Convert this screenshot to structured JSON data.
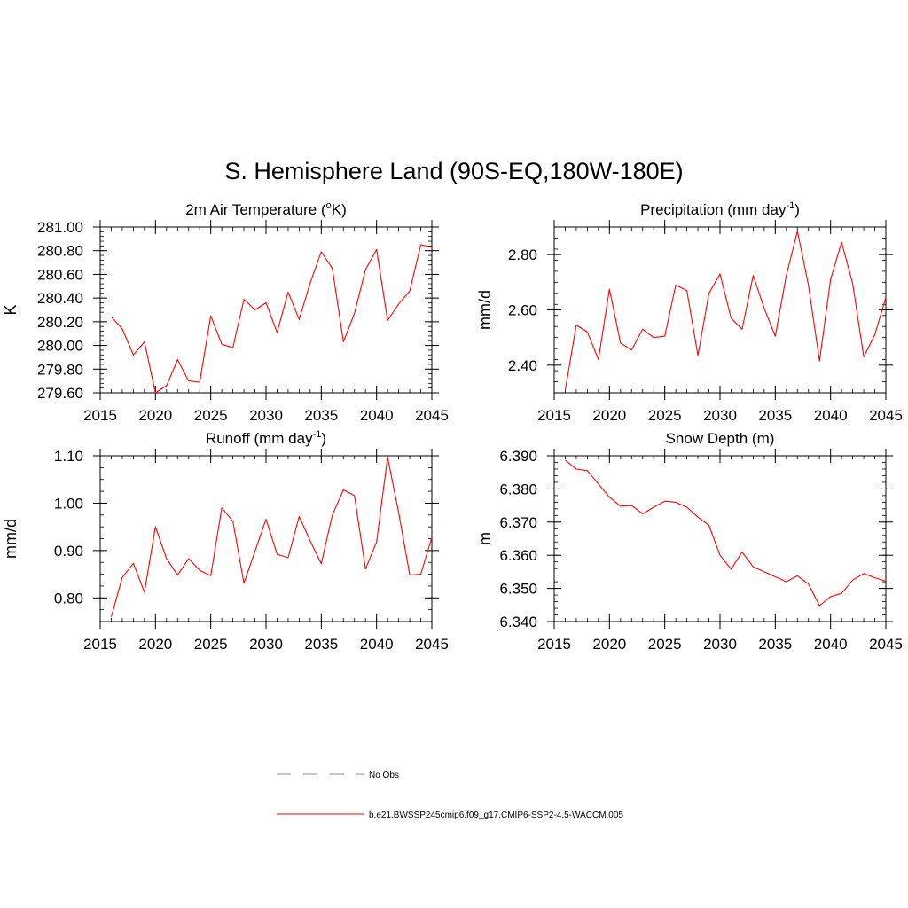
{
  "figure": {
    "title": "S. Hemisphere Land (90S-EQ,180W-180E)",
    "series_color": "#ff0000",
    "obs_color": "#9999dd"
  },
  "legend": {
    "obs_label": "No Obs",
    "model_label": "b.e21.BWSSP245cmip6.f09_g17.CMIP6-SSP2-4.5-WACCM.005"
  },
  "chart_data": [
    {
      "type": "line",
      "title": "2m Air Temperature (",
      "title_sup": "o",
      "title_suffix": "K)",
      "ylabel": "K",
      "xlim": [
        2015,
        2045
      ],
      "ylim": [
        279.6,
        281.0
      ],
      "xticks": [
        2015,
        2020,
        2025,
        2030,
        2035,
        2040,
        2045
      ],
      "xtick_labels": [
        "2015",
        "2020",
        "2025",
        "2030",
        "2035",
        "2040",
        "2045"
      ],
      "yticks": [
        279.6,
        279.8,
        280.0,
        280.2,
        280.4,
        280.6,
        280.8,
        281.0
      ],
      "ytick_labels": [
        "279.60",
        "279.80",
        "280.00",
        "280.20",
        "280.40",
        "280.60",
        "280.80",
        "281.00"
      ],
      "yminor_step": 0.04,
      "x": [
        2016,
        2017,
        2018,
        2019,
        2020,
        2021,
        2022,
        2023,
        2024,
        2025,
        2026,
        2027,
        2028,
        2029,
        2030,
        2031,
        2032,
        2033,
        2034,
        2035,
        2036,
        2037,
        2038,
        2039,
        2040,
        2041,
        2042,
        2043,
        2044,
        2045
      ],
      "values": [
        280.24,
        280.14,
        279.92,
        280.03,
        279.6,
        279.66,
        279.88,
        279.7,
        279.69,
        280.25,
        280.01,
        279.98,
        280.39,
        280.3,
        280.36,
        280.11,
        280.45,
        280.22,
        280.53,
        280.79,
        280.65,
        280.03,
        280.27,
        280.64,
        280.81,
        280.21,
        280.35,
        280.46,
        280.85,
        280.83
      ]
    },
    {
      "type": "line",
      "title": "Precipitation (mm day",
      "title_sup": "-1",
      "title_suffix": ")",
      "ylabel": "mm/d",
      "xlim": [
        2015,
        2045
      ],
      "ylim": [
        2.3,
        2.9
      ],
      "xticks": [
        2015,
        2020,
        2025,
        2030,
        2035,
        2040,
        2045
      ],
      "xtick_labels": [
        "2015",
        "2020",
        "2025",
        "2030",
        "2035",
        "2040",
        "2045"
      ],
      "yticks": [
        2.4,
        2.6,
        2.8
      ],
      "ytick_labels": [
        "2.40",
        "2.60",
        "2.80"
      ],
      "yminor_step": 0.04,
      "x": [
        2016,
        2017,
        2018,
        2019,
        2020,
        2021,
        2022,
        2023,
        2024,
        2025,
        2026,
        2027,
        2028,
        2029,
        2030,
        2031,
        2032,
        2033,
        2034,
        2035,
        2036,
        2037,
        2038,
        2039,
        2040,
        2041,
        2042,
        2043,
        2044,
        2045
      ],
      "values": [
        2.31,
        2.545,
        2.52,
        2.42,
        2.675,
        2.48,
        2.455,
        2.53,
        2.5,
        2.505,
        2.69,
        2.67,
        2.435,
        2.66,
        2.73,
        2.57,
        2.53,
        2.725,
        2.605,
        2.505,
        2.725,
        2.885,
        2.69,
        2.415,
        2.71,
        2.845,
        2.695,
        2.43,
        2.51,
        2.645
      ]
    },
    {
      "type": "line",
      "title": "Runoff (mm day",
      "title_sup": "-1",
      "title_suffix": ")",
      "ylabel": "mm/d",
      "xlim": [
        2015,
        2045
      ],
      "ylim": [
        0.75,
        1.1
      ],
      "xticks": [
        2015,
        2020,
        2025,
        2030,
        2035,
        2040,
        2045
      ],
      "xtick_labels": [
        "2015",
        "2020",
        "2025",
        "2030",
        "2035",
        "2040",
        "2045"
      ],
      "yticks": [
        0.8,
        0.9,
        1.0,
        1.1
      ],
      "ytick_labels": [
        "0.80",
        "0.90",
        "1.00",
        "1.10"
      ],
      "yminor_step": 0.025,
      "x": [
        2016,
        2017,
        2018,
        2019,
        2020,
        2021,
        2022,
        2023,
        2024,
        2025,
        2026,
        2027,
        2028,
        2029,
        2030,
        2031,
        2032,
        2033,
        2034,
        2035,
        2036,
        2037,
        2038,
        2039,
        2040,
        2041,
        2042,
        2043,
        2044,
        2045
      ],
      "values": [
        0.76,
        0.843,
        0.873,
        0.812,
        0.95,
        0.883,
        0.848,
        0.883,
        0.858,
        0.847,
        0.99,
        0.962,
        0.831,
        0.898,
        0.966,
        0.892,
        0.885,
        0.972,
        0.92,
        0.872,
        0.975,
        1.028,
        1.016,
        0.861,
        0.918,
        1.097,
        0.98,
        0.848,
        0.85,
        0.928
      ]
    },
    {
      "type": "line",
      "title": "Snow Depth (m)",
      "title_sup": "",
      "title_suffix": "",
      "ylabel": "m",
      "xlim": [
        2015,
        2045
      ],
      "ylim": [
        6.34,
        6.39
      ],
      "xticks": [
        2015,
        2020,
        2025,
        2030,
        2035,
        2040,
        2045
      ],
      "xtick_labels": [
        "2015",
        "2020",
        "2025",
        "2030",
        "2035",
        "2040",
        "2045"
      ],
      "yticks": [
        6.34,
        6.35,
        6.36,
        6.37,
        6.38,
        6.39
      ],
      "ytick_labels": [
        "6.340",
        "6.350",
        "6.360",
        "6.370",
        "6.380",
        "6.390"
      ],
      "yminor_step": 0.002,
      "x": [
        2016,
        2017,
        2018,
        2019,
        2020,
        2021,
        2022,
        2023,
        2024,
        2025,
        2026,
        2027,
        2028,
        2029,
        2030,
        2031,
        2032,
        2033,
        2034,
        2035,
        2036,
        2037,
        2038,
        2039,
        2040,
        2041,
        2042,
        2043,
        2044,
        2045
      ],
      "values": [
        6.3887,
        6.386,
        6.3855,
        6.3815,
        6.3775,
        6.3748,
        6.375,
        6.3725,
        6.3745,
        6.3763,
        6.376,
        6.3745,
        6.3715,
        6.369,
        6.36,
        6.3558,
        6.361,
        6.3565,
        6.355,
        6.3535,
        6.352,
        6.3538,
        6.3513,
        6.3448,
        6.3475,
        6.3485,
        6.3525,
        6.3545,
        6.3532,
        6.3522
      ]
    }
  ]
}
